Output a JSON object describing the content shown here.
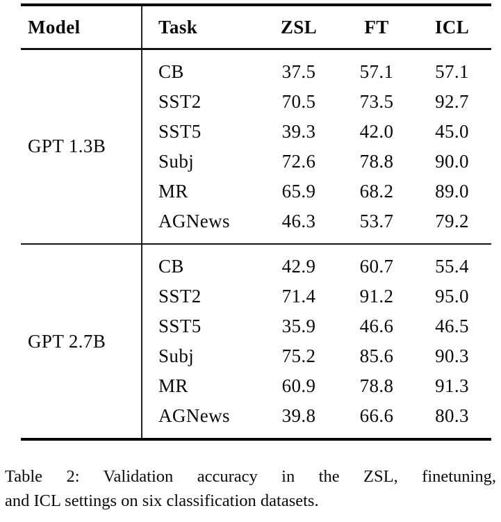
{
  "table": {
    "headers": {
      "model": "Model",
      "task": "Task",
      "zsl": "ZSL",
      "ft": "FT",
      "icl": "ICL"
    },
    "groups": [
      {
        "model": "GPT 1.3B",
        "rows": [
          {
            "task": "CB",
            "zsl": "37.5",
            "ft": "57.1",
            "icl": "57.1"
          },
          {
            "task": "SST2",
            "zsl": "70.5",
            "ft": "73.5",
            "icl": "92.7"
          },
          {
            "task": "SST5",
            "zsl": "39.3",
            "ft": "42.0",
            "icl": "45.0"
          },
          {
            "task": "Subj",
            "zsl": "72.6",
            "ft": "78.8",
            "icl": "90.0"
          },
          {
            "task": "MR",
            "zsl": "65.9",
            "ft": "68.2",
            "icl": "89.0"
          },
          {
            "task": "AGNews",
            "zsl": "46.3",
            "ft": "53.7",
            "icl": "79.2"
          }
        ]
      },
      {
        "model": "GPT 2.7B",
        "rows": [
          {
            "task": "CB",
            "zsl": "42.9",
            "ft": "60.7",
            "icl": "55.4"
          },
          {
            "task": "SST2",
            "zsl": "71.4",
            "ft": "91.2",
            "icl": "95.0"
          },
          {
            "task": "SST5",
            "zsl": "35.9",
            "ft": "46.6",
            "icl": "46.5"
          },
          {
            "task": "Subj",
            "zsl": "75.2",
            "ft": "85.6",
            "icl": "90.3"
          },
          {
            "task": "MR",
            "zsl": "60.9",
            "ft": "78.8",
            "icl": "91.3"
          },
          {
            "task": "AGNews",
            "zsl": "39.8",
            "ft": "66.6",
            "icl": "80.3"
          }
        ]
      }
    ]
  },
  "caption": {
    "line1": "Table 2: Validation accuracy in the ZSL, finetuning,",
    "line2": "and ICL settings on six classification datasets."
  },
  "colors": {
    "text": "#0a0a0a",
    "rule": "#000000",
    "background": "#ffffff"
  }
}
